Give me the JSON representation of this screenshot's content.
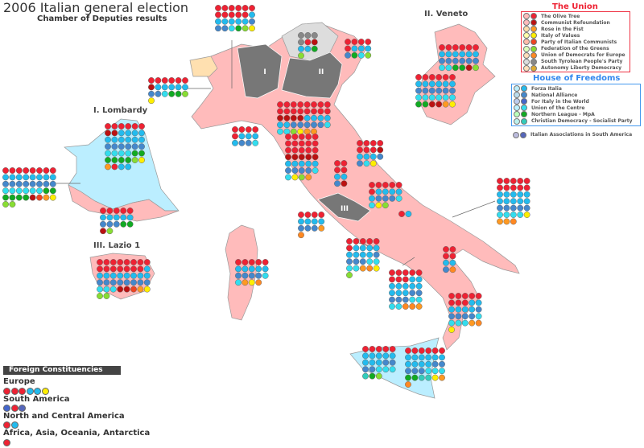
{
  "title": "2006 Italian general election",
  "subtitle": "Chamber of Deputies results",
  "insets": {
    "lombardy": "I. Lombardy",
    "veneto": "II. Veneto",
    "lazio": "III. Lazio 1"
  },
  "map_labels": [
    "I",
    "II",
    "III"
  ],
  "colors": {
    "region_fill": "#ffbbbb",
    "highlight_fill": "#777777",
    "trentino_fill": "#dddddd",
    "aosta_fill": "#ffe0b0",
    "border": "#999999"
  },
  "parties": {
    "O": {
      "name": "The Olive Tree",
      "color": "#ee2233",
      "light": "#ffbbbb"
    },
    "R": {
      "name": "Communist Refoundation",
      "color": "#bb1111",
      "light": "#ffbbbb"
    },
    "P": {
      "name": "Rose in the Fist",
      "color": "#ff9922",
      "light": "#ffddaa"
    },
    "V": {
      "name": "Italy of Values",
      "color": "#ffee00",
      "light": "#ffffaa"
    },
    "C": {
      "name": "Party of Italian Communists",
      "color": "#ee4422",
      "light": "#ffbbaa"
    },
    "G": {
      "name": "Federation of the Greens",
      "color": "#88dd33",
      "light": "#ddffbb"
    },
    "U": {
      "name": "Union of Democrats for Europe",
      "color": "#ff8822",
      "light": "#ffddbb"
    },
    "S": {
      "name": "South Tyrolean People's Party",
      "color": "#888888",
      "light": "#dddddd"
    },
    "A": {
      "name": "Autonomy Liberty Democracy",
      "color": "#ddaa33",
      "light": "#ffe0bb"
    },
    "F": {
      "name": "Forza Italia",
      "color": "#22bbee",
      "light": "#bbeeff"
    },
    "N": {
      "name": "National Alliance",
      "color": "#4488cc",
      "light": "#bbddee"
    },
    "M": {
      "name": "For Italy in the World",
      "color": "#4466cc",
      "light": "#bbccee"
    },
    "D": {
      "name": "Union of the Centre",
      "color": "#33ddee",
      "light": "#bbf0ff"
    },
    "L": {
      "name": "Northern League - MpA",
      "color": "#11aa22",
      "light": "#bbffbb"
    },
    "X": {
      "name": "Christian Democracy - Socialist Party",
      "color": "#33ccbb",
      "light": "#bbf0ee"
    },
    "Q": {
      "name": "Italian Associations in South America",
      "color": "#5566bb",
      "light": "#bbbbdd"
    }
  },
  "legend": {
    "union_title": "The Union",
    "union_color": "#ee2233",
    "union": [
      "O",
      "R",
      "P",
      "V",
      "C",
      "G",
      "U",
      "S",
      "A"
    ],
    "hof_title": "House of Freedoms",
    "hof_color": "#3388ee",
    "hof": [
      "F",
      "N",
      "M",
      "D",
      "L",
      "X"
    ],
    "other": [
      "Q"
    ]
  },
  "constituencies": [
    {
      "seats": "OOOOOOOOOOOFFFFFFNNNDLGV"
    },
    {
      "seats": "SSSSORFFLG"
    },
    {
      "seats": "OOOOOFFFNLDG"
    },
    {
      "seats": "OOOOOORFFFFFNNDLLGV"
    },
    {
      "seats": "OOOOOORRFFFFFFFFFFNNNNNNDDDDLLLLLLGVPOFF"
    },
    {
      "seats": "OOOOOOOOFFFFFFFFNNNNNNNNDDDDDDLLLLLLRCPVGG"
    },
    {
      "seats": "OOOOOFFFFFNNNLLRG"
    },
    {
      "seats": "OOOOOOFFFFFFNNNNNNDDLLRG"
    },
    {
      "seats": "OOOOOOFFFFFFNNNNNNDDDDDDLLRRPV"
    },
    {
      "seats": "OOOOOOOOOOOOOOOORRRRFFFFFFNNNNNDDDGVPP"
    },
    {
      "seats": "OOOOOFFFFNND"
    },
    {
      "seats": "OOOOOOOOOOOOOOORRRRRFFFFFNNNNDDVGP"
    },
    {
      "seats": "OOOOOOORFFFNNDV"
    },
    {
      "seats": "OOOOFFNR"
    },
    {
      "seats": "OOOOOOFFFFFNNNDDVG"
    },
    {
      "seats": "OOOOOOOOOOOOOOOFFFFFFFFFNNNNNNNNDDDRRCPVGG"
    },
    {
      "seats": "OOOOFFFFNNNPU"
    },
    {
      "seats": "OOOOOOFFFFFFFFNNNNDDDDPUVG"
    },
    {
      "seats": "OOOOOOOOFFFFFFFFFFNNNNNDDDDUUP"
    },
    {
      "seats": "OOOOOOOOOOFFFFFFFFFFNNNNNDDDDVPPU"
    },
    {
      "seats": "OOOOFFNU"
    },
    {
      "seats": "OOOOOOOOFFFFFFNNNNNDDDDPUV"
    },
    {
      "seats": "OOOOOFFFFFNNNNDDPVU"
    },
    {
      "seats": "OOOOOFFFFFFFFNNNNDDDXLG"
    },
    {
      "seats": "OOOOOOFFFFFFFFFFNNNNNDDDLLXXVPU"
    },
    {
      "seats": "OF"
    }
  ],
  "foreign": {
    "title": "Foreign Constituencies",
    "areas": [
      {
        "name": "Europe",
        "seats": "OOOFFV"
      },
      {
        "name": "South America",
        "seats": "MOQ"
      },
      {
        "name": "North and Central America",
        "seats": "OF"
      },
      {
        "name": "Africa, Asia, Oceania, Antarctica",
        "seats": "O"
      }
    ]
  }
}
